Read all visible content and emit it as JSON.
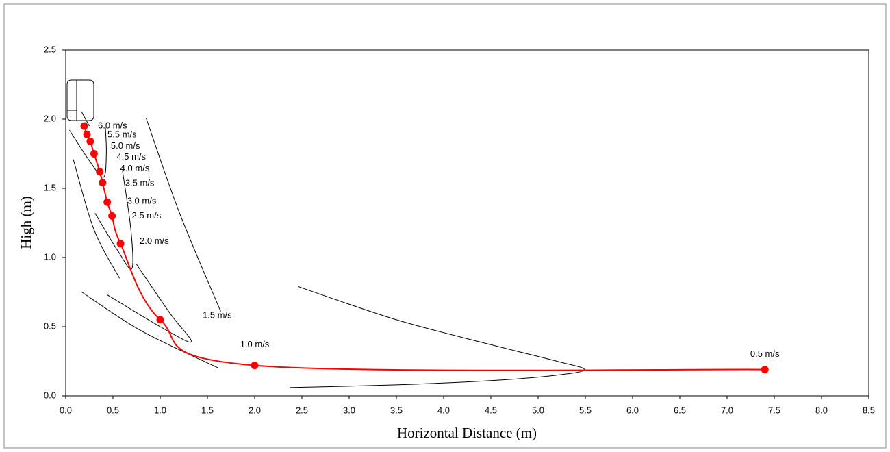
{
  "chart_data": {
    "type": "scatter",
    "xlabel": "Horizontal Distance (m)",
    "ylabel": "High (m)",
    "xlim": [
      0,
      8.5
    ],
    "ylim": [
      0,
      2.5
    ],
    "xticks": [
      {
        "value": 0,
        "label": "0.0"
      },
      0.5,
      {
        "value": 1,
        "label": "1.0"
      },
      1.5,
      {
        "value": 2,
        "label": "2.0"
      },
      2.5,
      {
        "value": 3,
        "label": "3.0"
      },
      3.5,
      {
        "value": 4,
        "label": "4.0"
      },
      4.5,
      {
        "value": 5,
        "label": "5.0"
      },
      5.5,
      {
        "value": 6,
        "label": "6.0"
      },
      6.5,
      {
        "value": 7,
        "label": "7.0"
      },
      7.5,
      {
        "value": 8,
        "label": "8.0"
      },
      8.5
    ],
    "yticks": [
      {
        "value": 0,
        "label": "0.0"
      },
      0.5,
      {
        "value": 1,
        "label": "1.0"
      },
      1.5,
      {
        "value": 2,
        "label": "2.0"
      },
      2.5
    ],
    "series": [
      {
        "color": "#ff0000",
        "x": [
          0.196,
          0.225,
          0.26,
          0.3,
          0.36,
          0.39,
          0.44,
          0.49,
          0.58,
          1.0,
          2.0,
          7.4
        ],
        "values": [
          1.95,
          1.89,
          1.84,
          1.75,
          1.62,
          1.54,
          1.4,
          1.3,
          1.1,
          0.55,
          0.22,
          0.19
        ],
        "point_labels": [
          "6.0 m/s",
          "5.5 m/s",
          "5.0 m/s",
          "4.5 m/s",
          "4.0 m/s",
          "3.5 m/s",
          "3.0 m/s",
          "2.5 m/s",
          "2.0 m/s",
          "1.5 m/s",
          "1.0 m/s",
          "0.5 m/s"
        ]
      }
    ],
    "curves": [
      {
        "color": "#000000",
        "x": [
          2.46,
          3.5,
          4.5,
          5.2,
          5.49,
          5.2,
          4.5,
          3.5,
          2.37
        ],
        "values": [
          0.79,
          0.55,
          0.37,
          0.25,
          0.19,
          0.15,
          0.11,
          0.08,
          0.06
        ]
      },
      {
        "color": "#000000",
        "x": [
          0.85,
          1.2,
          1.64
        ],
        "values": [
          2.01,
          1.33,
          0.61
        ]
      },
      {
        "color": "#000000",
        "x": [
          0.44,
          1.0,
          1.33,
          1.1,
          0.75
        ],
        "values": [
          0.73,
          0.5,
          0.39,
          0.6,
          0.95
        ]
      },
      {
        "color": "#000000",
        "x": [
          0.31,
          0.55,
          0.7,
          0.69,
          0.6
        ],
        "values": [
          1.32,
          1.05,
          0.92,
          1.2,
          1.63
        ]
      },
      {
        "color": "#000000",
        "x": [
          0.08,
          0.3,
          0.57
        ],
        "values": [
          1.71,
          1.2,
          0.85
        ]
      },
      {
        "color": "#000000",
        "x": [
          0.04,
          0.25,
          0.4,
          0.43,
          0.42
        ],
        "values": [
          1.92,
          1.7,
          1.58,
          1.75,
          1.94
        ]
      },
      {
        "color": "#000000",
        "x": [
          0.17,
          0.8,
          1.62
        ],
        "values": [
          0.75,
          0.47,
          0.2
        ]
      },
      {
        "color": "#000000",
        "x": [
          0.17,
          0.25
        ],
        "values": [
          2.05,
          1.95
        ]
      }
    ]
  }
}
